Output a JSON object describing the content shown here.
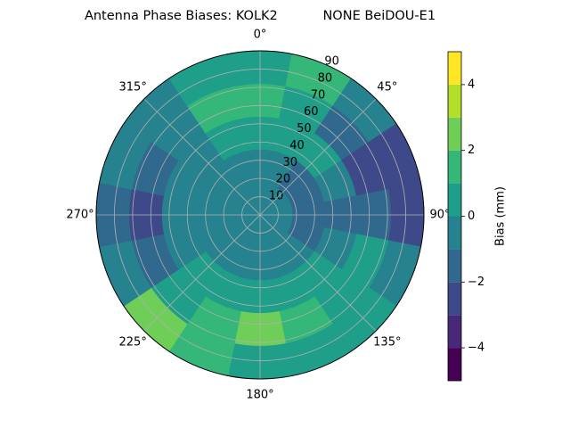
{
  "chart_data": {
    "type": "polar-contour",
    "title": "Antenna Phase Biases: KOLK2           NONE BeiDOU-E1",
    "theta_ticks": [
      {
        "value": 0,
        "label": "0°"
      },
      {
        "value": 45,
        "label": "45°"
      },
      {
        "value": 90,
        "label": "90°"
      },
      {
        "value": 135,
        "label": "135°"
      },
      {
        "value": 180,
        "label": "180°"
      },
      {
        "value": 225,
        "label": "225°"
      },
      {
        "value": 270,
        "label": "270°"
      },
      {
        "value": 315,
        "label": "315°"
      }
    ],
    "rlim": [
      0,
      90
    ],
    "rticks": [
      10,
      20,
      30,
      40,
      50,
      60,
      70,
      80,
      90
    ],
    "azimuths": [
      0,
      22.5,
      45,
      67.5,
      90,
      112.5,
      135,
      157.5,
      180,
      202.5,
      225,
      247.5,
      270,
      292.5,
      315,
      337.5
    ],
    "r_edges": [
      0,
      18,
      36,
      54,
      72,
      90
    ],
    "values": [
      [
        -0.5,
        -0.5,
        -0.5,
        -0.5,
        -0.5,
        -0.5,
        -0.5,
        -0.5,
        -0.5,
        -0.5,
        -0.5,
        -0.5,
        -0.5,
        -0.5,
        -0.5,
        -0.5
      ],
      [
        -0.5,
        -0.5,
        -1.5,
        -1.5,
        -1.5,
        -1.5,
        -0.5,
        -0.5,
        -0.5,
        -0.5,
        -0.5,
        -0.5,
        -0.5,
        -0.5,
        -0.5,
        -0.5
      ],
      [
        0.5,
        0.5,
        0.5,
        -0.5,
        -1.5,
        -0.5,
        0.5,
        0.5,
        0.5,
        0.5,
        0.5,
        -0.5,
        -0.5,
        -0.5,
        -0.5,
        0.5
      ],
      [
        1.5,
        0.5,
        -1.5,
        -2.5,
        -1.5,
        0.5,
        0.5,
        1.5,
        2.5,
        1.5,
        0.5,
        -1.5,
        -2.5,
        -1.5,
        -0.5,
        1.5
      ],
      [
        0.5,
        1.5,
        -0.5,
        -2.5,
        -2.5,
        -0.5,
        0.5,
        0.5,
        0.5,
        1.5,
        2.5,
        -0.5,
        -1.5,
        -0.5,
        -0.5,
        0.5
      ]
    ],
    "colorbar": {
      "label": "Bias (mm)",
      "levels": [
        -5,
        -4,
        -3,
        -2,
        -1,
        0,
        1,
        2,
        3,
        4,
        5
      ],
      "colors": [
        "#440154",
        "#482878",
        "#3e4989",
        "#31688e",
        "#26828e",
        "#1f9e89",
        "#35b779",
        "#6ece58",
        "#b5de2b",
        "#fde725"
      ],
      "ticks": [
        {
          "value": -4,
          "label": "−4"
        },
        {
          "value": -2,
          "label": "−2"
        },
        0,
        2,
        4
      ]
    }
  }
}
